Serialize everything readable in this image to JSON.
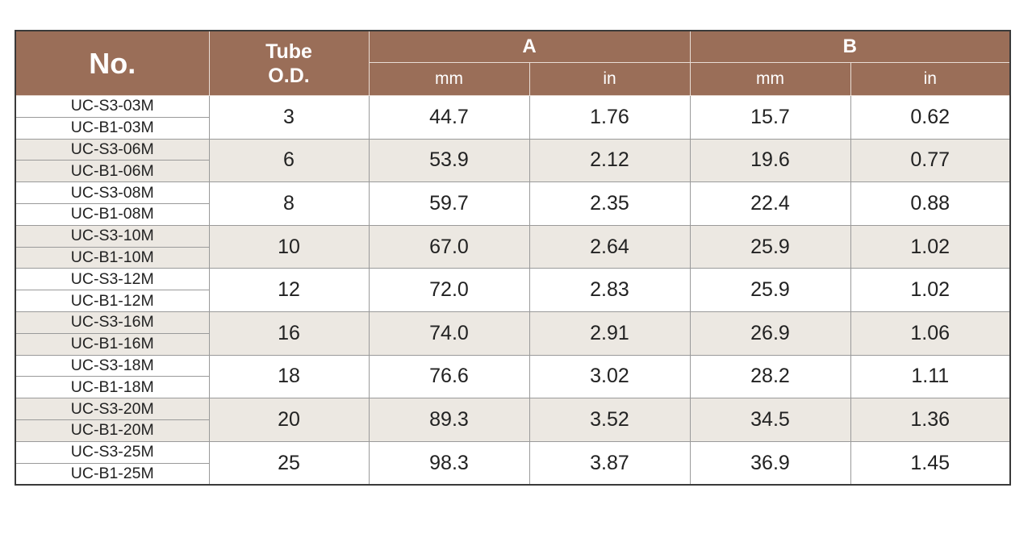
{
  "header": {
    "no": "No.",
    "tube_od": "Tube O.D.",
    "group_a": "A",
    "group_b": "B",
    "a_mm": "mm",
    "a_in": "in",
    "b_mm": "mm",
    "b_in": "in"
  },
  "rows": [
    {
      "models": [
        "UC-S3-03M",
        "UC-B1-03M"
      ],
      "tube_od": "3",
      "a_mm": "44.7",
      "a_in": "1.76",
      "b_mm": "15.7",
      "b_in": "0.62"
    },
    {
      "models": [
        "UC-S3-06M",
        "UC-B1-06M"
      ],
      "tube_od": "6",
      "a_mm": "53.9",
      "a_in": "2.12",
      "b_mm": "19.6",
      "b_in": "0.77"
    },
    {
      "models": [
        "UC-S3-08M",
        "UC-B1-08M"
      ],
      "tube_od": "8",
      "a_mm": "59.7",
      "a_in": "2.35",
      "b_mm": "22.4",
      "b_in": "0.88"
    },
    {
      "models": [
        "UC-S3-10M",
        "UC-B1-10M"
      ],
      "tube_od": "10",
      "a_mm": "67.0",
      "a_in": "2.64",
      "b_mm": "25.9",
      "b_in": "1.02"
    },
    {
      "models": [
        "UC-S3-12M",
        "UC-B1-12M"
      ],
      "tube_od": "12",
      "a_mm": "72.0",
      "a_in": "2.83",
      "b_mm": "25.9",
      "b_in": "1.02"
    },
    {
      "models": [
        "UC-S3-16M",
        "UC-B1-16M"
      ],
      "tube_od": "16",
      "a_mm": "74.0",
      "a_in": "2.91",
      "b_mm": "26.9",
      "b_in": "1.06"
    },
    {
      "models": [
        "UC-S3-18M",
        "UC-B1-18M"
      ],
      "tube_od": "18",
      "a_mm": "76.6",
      "a_in": "3.02",
      "b_mm": "28.2",
      "b_in": "1.11"
    },
    {
      "models": [
        "UC-S3-20M",
        "UC-B1-20M"
      ],
      "tube_od": "20",
      "a_mm": "89.3",
      "a_in": "3.52",
      "b_mm": "34.5",
      "b_in": "1.36"
    },
    {
      "models": [
        "UC-S3-25M",
        "UC-B1-25M"
      ],
      "tube_od": "25",
      "a_mm": "98.3",
      "a_in": "3.87",
      "b_mm": "36.9",
      "b_in": "1.45"
    }
  ]
}
